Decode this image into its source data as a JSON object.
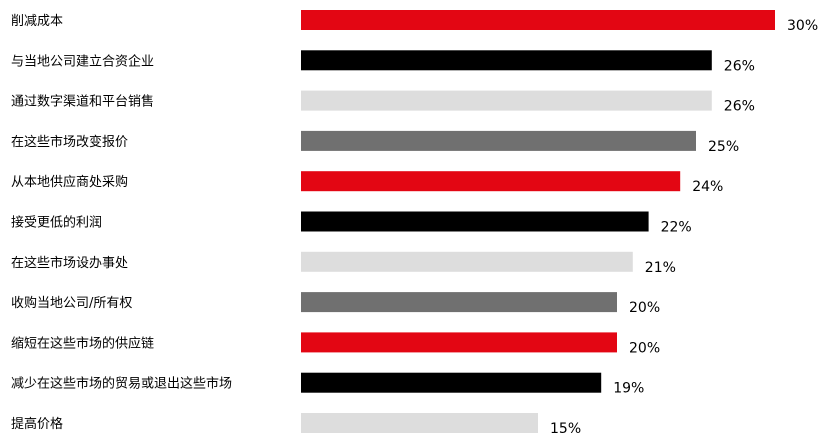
{
  "chart_data": {
    "type": "bar",
    "orientation": "horizontal",
    "categories": [
      "削减成本",
      "与当地公司建立合资企业",
      "通过数字渠道和平台销售",
      "在这些市场改变报价",
      "从本地供应商处采购",
      "接受更低的利润",
      "在这些市场设办事处",
      "收购当地公司/所有权",
      "缩短在这些市场的供应链",
      "减少在这些市场的贸易或退出这些市场",
      "提高价格"
    ],
    "values": [
      30,
      26,
      26,
      25,
      24,
      22,
      21,
      20,
      20,
      19,
      15
    ],
    "value_labels": [
      "30%",
      "26%",
      "26%",
      "25%",
      "24%",
      "22%",
      "21%",
      "20%",
      "20%",
      "19%",
      "15%"
    ],
    "bar_colors": [
      "#e30613",
      "#000000",
      "#dddddd",
      "#707070",
      "#e30613",
      "#000000",
      "#dddddd",
      "#707070",
      "#e30613",
      "#000000",
      "#dddddd"
    ],
    "unit": "%",
    "xlim": [
      0,
      30
    ],
    "grid": false,
    "legend": "none"
  }
}
